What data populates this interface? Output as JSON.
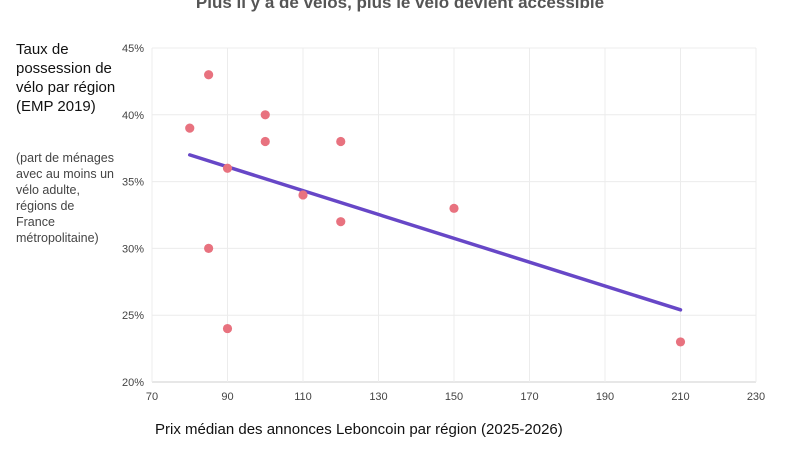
{
  "chart_data": {
    "type": "scatter",
    "title": "Plus il y a de vélos, plus le vélo devient accessible",
    "ylabel": "Taux de possession de vélo par région (EMP 2019)",
    "ylabel_note": "(part de ménages avec au moins un vélo adulte, régions de France métropolitaine)",
    "xlabel": "Prix médian des annonces Leboncoin par région (2025-2026)",
    "xlim": [
      70,
      230
    ],
    "ylim": [
      20,
      45
    ],
    "x_ticks": [
      70,
      90,
      110,
      130,
      150,
      170,
      190,
      210,
      230
    ],
    "y_ticks": [
      20,
      25,
      30,
      35,
      40,
      45
    ],
    "y_tick_labels": [
      "20%",
      "25%",
      "30%",
      "35%",
      "40%",
      "45%"
    ],
    "grid": true,
    "point_color": "#e8727f",
    "trend_color": "#6747c7",
    "points": [
      {
        "x": 80,
        "y": 39
      },
      {
        "x": 85,
        "y": 43
      },
      {
        "x": 85,
        "y": 30
      },
      {
        "x": 90,
        "y": 36
      },
      {
        "x": 90,
        "y": 24
      },
      {
        "x": 100,
        "y": 40
      },
      {
        "x": 100,
        "y": 38
      },
      {
        "x": 110,
        "y": 34
      },
      {
        "x": 120,
        "y": 38
      },
      {
        "x": 120,
        "y": 32
      },
      {
        "x": 150,
        "y": 33
      },
      {
        "x": 210,
        "y": 23
      }
    ],
    "trend_line": [
      {
        "x": 80,
        "y": 37
      },
      {
        "x": 210,
        "y": 25.4
      }
    ]
  }
}
